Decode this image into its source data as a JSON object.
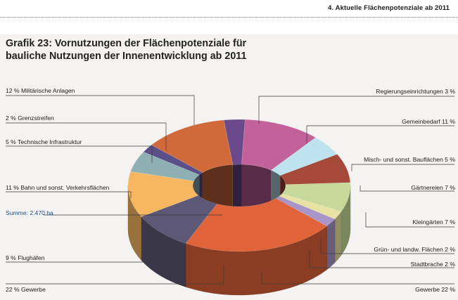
{
  "page": {
    "running_head": "4. Aktuelle Flächenpotenziale ab 2011"
  },
  "chart_data": {
    "type": "pie",
    "variant": "3d-donut",
    "title_lines": [
      "Grafik 23: Vornutzungen der Flächenpotenziale für",
      "bauliche Nutzungen der Innenentwicklung ab 2011"
    ],
    "summary": "Summe: 2.470 ha",
    "unit": "%",
    "slices": [
      {
        "name": "Regierungseinrichtungen",
        "value": 3,
        "label": "Regierungseinrichtungen 3 %",
        "color": "#6a4a8a"
      },
      {
        "name": "Gemeinbedarf",
        "value": 11,
        "label": "Gemeinbedarf 11 %",
        "color": "#c3619b"
      },
      {
        "name": "Misch- und sonst. Bauflächen",
        "value": 5,
        "label": "Misch- und sonst. Bauflächen 5 %",
        "color": "#bfe3ee"
      },
      {
        "name": "Gärtnereien",
        "value": 7,
        "label": "Gärtnereien 7 %",
        "color": "#a54a3a"
      },
      {
        "name": "Kleingärten",
        "value": 7,
        "label": "Kleingärten 7 %",
        "color": "#c7d99a"
      },
      {
        "name": "Grün- und landw. Flächen",
        "value": 2,
        "label": "Grün- und landw. Flächen 2 %",
        "color": "#e8e1a4"
      },
      {
        "name": "Stadtbrache",
        "value": 2,
        "label": "Stadtbrache 2 %",
        "color": "#a996c9"
      },
      {
        "name": "Gewerbe",
        "value": 22,
        "label": "Gewerbe 22 %",
        "color": "#e0633a"
      },
      {
        "name": "Flughäfen",
        "value": 9,
        "label": "9 % Flughäfen",
        "color": "#5d5876"
      },
      {
        "name": "Bahn und sonst. Verkehrsflächen",
        "value": 11,
        "label": "11 % Bahn und sonst. Verkehrsflächen",
        "color": "#f7b660"
      },
      {
        "name": "Technische Infrastruktur",
        "value": 5,
        "label": "5 % Technische Infrastruktur",
        "color": "#8fb0b3"
      },
      {
        "name": "Grenzstreifen",
        "value": 2,
        "label": "2 % Grenzstreifen",
        "color": "#5b4f8a"
      },
      {
        "name": "Militärische Anlagen",
        "value": 12,
        "label": "12 % Militärische Anlagen",
        "color": "#d06a3b"
      }
    ],
    "left_labels": [
      "12 % Militärische Anlagen",
      "2 % Grenzstreifen",
      "5 % Technische Infrastruktur",
      "11 % Bahn und sonst. Verkehrsflächen",
      "9 % Flughäfen",
      "22 % Gewerbe"
    ],
    "right_labels": [
      "Regierungseinrichtungen 3 %",
      "Gemeinbedarf 11 %",
      "Misch- und sonst. Bauflächen 5 %",
      "Gärtnereien 7 %",
      "Kleingärten 7 %",
      "Grün- und landw. Flächen 2 %",
      "Stadtbrache 2 %",
      "Gewerbe 22 %"
    ]
  }
}
